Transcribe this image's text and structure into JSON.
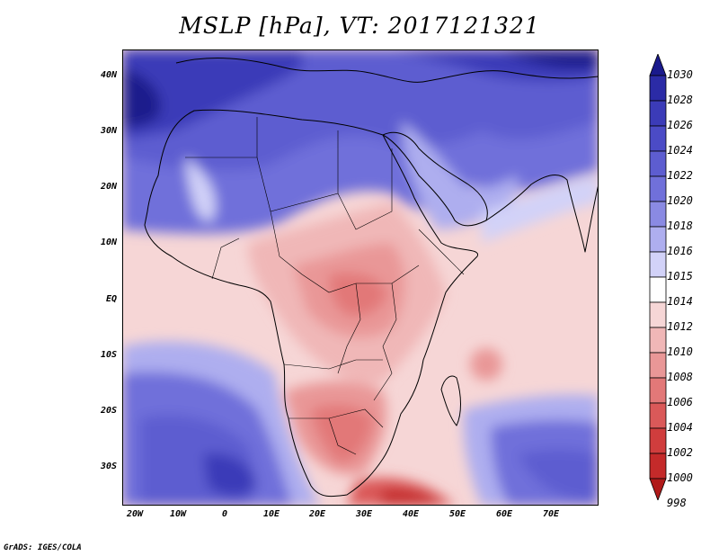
{
  "title": "MSLP [hPa], VT: 2017121321",
  "credit": "GrADS: IGES/COLA",
  "x_ticks": [
    "20W",
    "10W",
    "0",
    "10E",
    "20E",
    "30E",
    "40E",
    "50E",
    "60E",
    "70E"
  ],
  "y_ticks": [
    "40N",
    "30N",
    "20N",
    "10N",
    "EQ",
    "10S",
    "20S",
    "30S"
  ],
  "colorbar": {
    "labels": [
      "1030",
      "1028",
      "1026",
      "1024",
      "1022",
      "1020",
      "1018",
      "1016",
      "1015",
      "1014",
      "1012",
      "1010",
      "1008",
      "1006",
      "1004",
      "1002",
      "1000",
      "998"
    ],
    "colors": [
      "#1a1a8c",
      "#2b2ba6",
      "#3b3bb8",
      "#4b4bc6",
      "#5d5dd0",
      "#7070da",
      "#8a8ae3",
      "#aeaeef",
      "#d2d2f8",
      "#ffffff",
      "#f6d6d6",
      "#f0b7b7",
      "#e99797",
      "#e27878",
      "#da5959",
      "#d03d3d",
      "#c42a2a",
      "#b01a1a"
    ]
  }
}
